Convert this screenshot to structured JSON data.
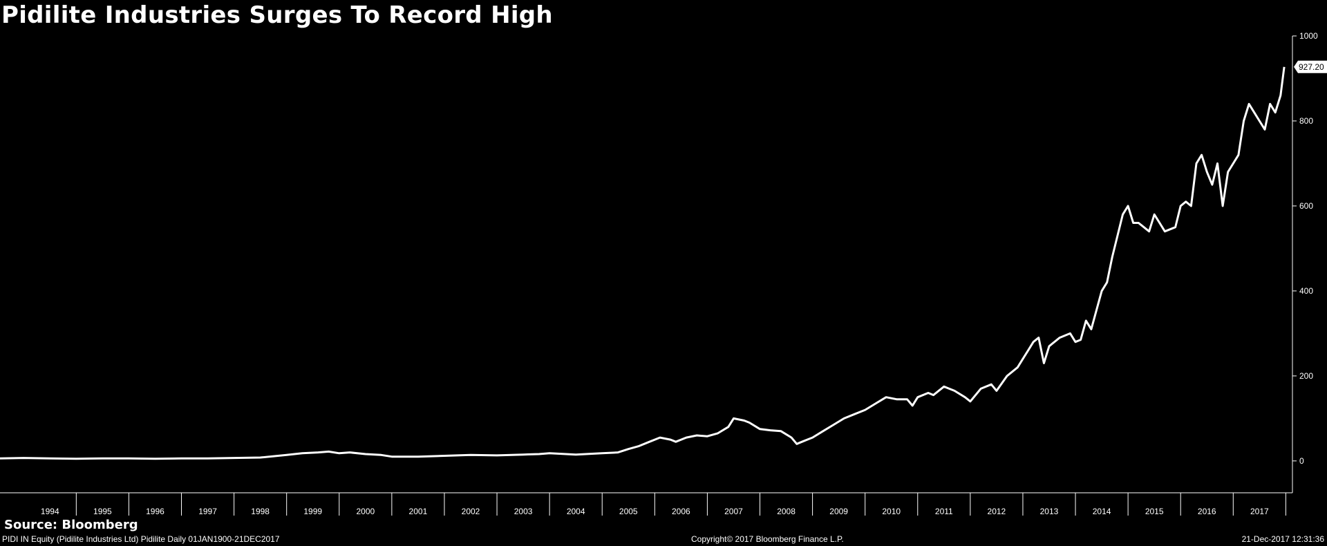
{
  "header": {
    "title": "Pidilite Industries Surges To Record High"
  },
  "source": "Source: Bloomberg",
  "footer": {
    "left": "PIDI IN Equity (Pidilite Industries Ltd) Pidilite  Daily 01JAN1900-21DEC2017",
    "center": "Copyright© 2017 Bloomberg Finance L.P.",
    "right": "21-Dec-2017 12:31:36"
  },
  "colors": {
    "background": "#000000",
    "line": "#ffffff",
    "text": "#ffffff"
  },
  "chart_data": {
    "type": "line",
    "title": "Pidilite Industries Surges To Record High",
    "xlabel": "",
    "ylabel": "",
    "ylim": [
      -75,
      1000
    ],
    "xlim": [
      1993.55,
      2018.1
    ],
    "yticks": [
      0,
      200,
      400,
      600,
      800,
      1000
    ],
    "xticks": [
      "1994",
      "1995",
      "1996",
      "1997",
      "1998",
      "1999",
      "2000",
      "2001",
      "2002",
      "2003",
      "2004",
      "2005",
      "2006",
      "2007",
      "2008",
      "2009",
      "2010",
      "2011",
      "2012",
      "2013",
      "2014",
      "2015",
      "2016",
      "2017"
    ],
    "last_value_label": "927.20",
    "grid": false,
    "series": [
      {
        "x": [
          1993.55,
          1994.0,
          1994.5,
          1995.0,
          1995.5,
          1996.0,
          1996.5,
          1997.0,
          1997.5,
          1998.0,
          1998.5,
          1999.0,
          1999.3,
          1999.6,
          1999.8,
          2000.0,
          2000.2,
          2000.5,
          2000.8,
          2001.0,
          2001.5,
          2002.0,
          2002.5,
          2003.0,
          2003.5,
          2003.8,
          2004.0,
          2004.5,
          2005.0,
          2005.3,
          2005.5,
          2005.7,
          2005.9,
          2006.1,
          2006.3,
          2006.4,
          2006.6,
          2006.8,
          2007.0,
          2007.2,
          2007.4,
          2007.5,
          2007.7,
          2007.8,
          2008.0,
          2008.2,
          2008.4,
          2008.6,
          2008.7,
          2008.8,
          2008.9,
          2009.0,
          2009.2,
          2009.4,
          2009.6,
          2009.8,
          2010.0,
          2010.2,
          2010.4,
          2010.6,
          2010.8,
          2010.9,
          2011.0,
          2011.2,
          2011.3,
          2011.5,
          2011.6,
          2011.7,
          2011.9,
          2012.0,
          2012.2,
          2012.4,
          2012.5,
          2012.7,
          2012.9,
          2013.0,
          2013.1,
          2013.2,
          2013.3,
          2013.4,
          2013.5,
          2013.7,
          2013.9,
          2014.0,
          2014.1,
          2014.2,
          2014.3,
          2014.5,
          2014.6,
          2014.7,
          2014.9,
          2015.0,
          2015.1,
          2015.2,
          2015.4,
          2015.5,
          2015.6,
          2015.7,
          2015.9,
          2016.0,
          2016.1,
          2016.2,
          2016.3,
          2016.4,
          2016.5,
          2016.6,
          2016.7,
          2016.8,
          2016.9,
          2017.0,
          2017.1,
          2017.2,
          2017.3,
          2017.4,
          2017.5,
          2017.6,
          2017.7,
          2017.8,
          2017.9,
          2017.97
        ],
        "y": [
          6,
          7,
          6,
          5,
          6,
          6,
          5,
          6,
          6,
          7,
          8,
          14,
          18,
          20,
          22,
          18,
          20,
          16,
          14,
          10,
          10,
          12,
          14,
          13,
          15,
          16,
          18,
          15,
          18,
          20,
          28,
          35,
          45,
          55,
          50,
          45,
          55,
          60,
          58,
          65,
          80,
          100,
          95,
          90,
          75,
          72,
          70,
          55,
          40,
          45,
          50,
          55,
          70,
          85,
          100,
          110,
          120,
          135,
          150,
          145,
          145,
          130,
          150,
          160,
          155,
          175,
          170,
          165,
          150,
          140,
          170,
          180,
          165,
          200,
          220,
          240,
          260,
          280,
          290,
          230,
          270,
          290,
          300,
          280,
          285,
          330,
          310,
          400,
          420,
          480,
          580,
          600,
          560,
          560,
          540,
          580,
          560,
          540,
          550,
          600,
          610,
          600,
          700,
          720,
          680,
          650,
          700,
          600,
          680,
          700,
          720,
          800,
          840,
          820,
          800,
          780,
          840,
          820,
          860,
          927.2
        ]
      }
    ]
  }
}
